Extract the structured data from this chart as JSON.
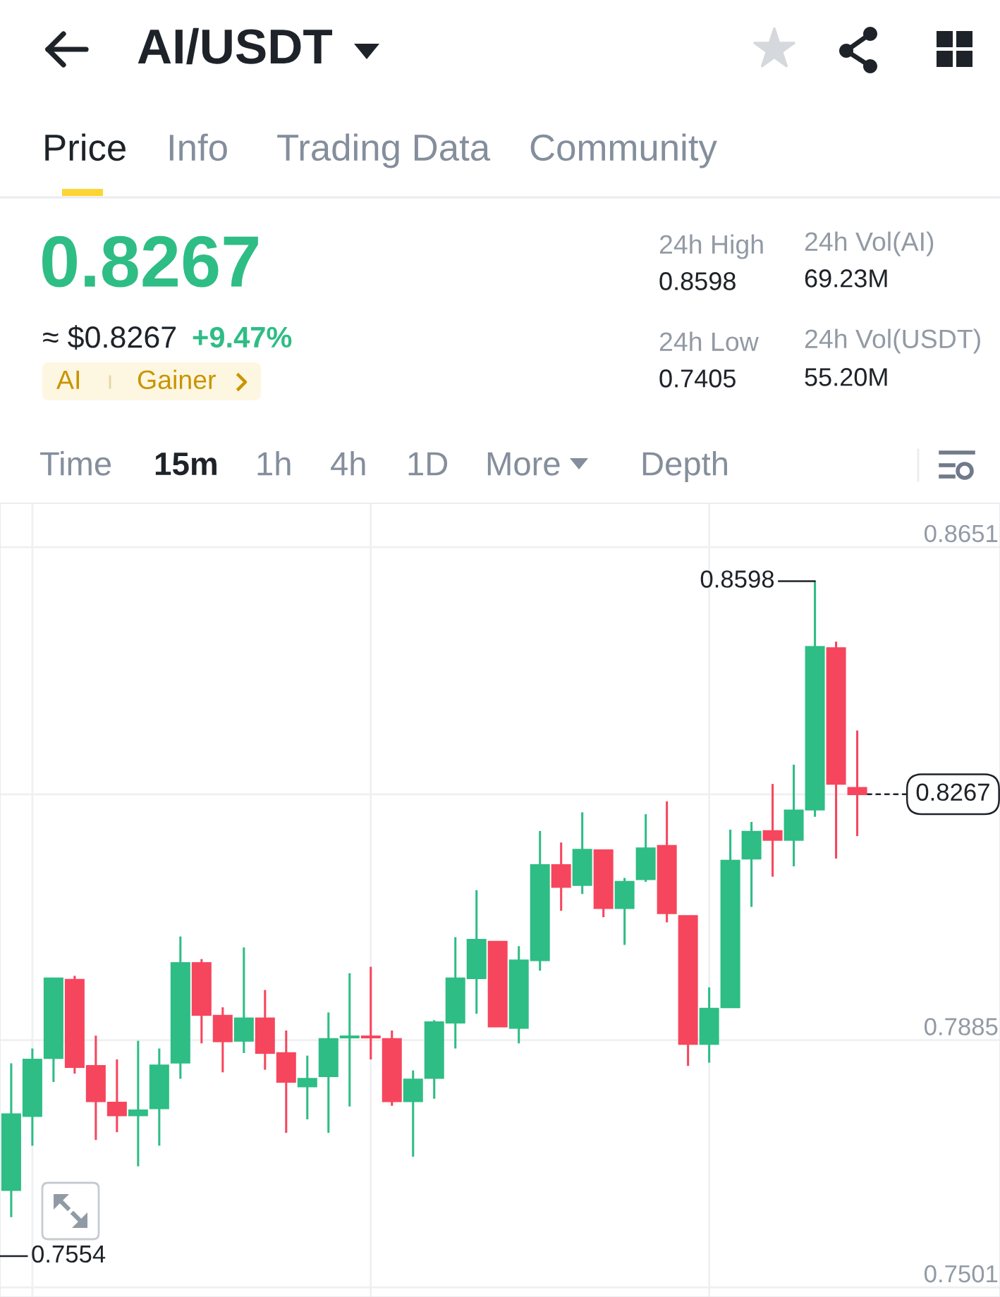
{
  "chart_data": {
    "type": "candlestick",
    "title": "AI/USDT",
    "categories": [
      null,
      null,
      null,
      null,
      null,
      null,
      null,
      null,
      null,
      null,
      null,
      null,
      null,
      null,
      null,
      null,
      null,
      null,
      null,
      null,
      null,
      null,
      null,
      null,
      null,
      null,
      null,
      null,
      null,
      null,
      null,
      null,
      null,
      null,
      null,
      null,
      null,
      null,
      null,
      null,
      null
    ],
    "ohlc": [
      [
        0.7652,
        0.7849,
        0.761,
        0.777
      ],
      [
        0.7767,
        0.7872,
        0.7721,
        0.7855
      ],
      [
        0.7857,
        0.7981,
        0.782,
        0.7981
      ],
      [
        0.7979,
        0.7985,
        0.7833,
        0.7843
      ],
      [
        0.7845,
        0.7892,
        0.773,
        0.779
      ],
      [
        0.7788,
        0.7855,
        0.7742,
        0.7768
      ],
      [
        0.7768,
        0.7884,
        0.7689,
        0.7776
      ],
      [
        0.7779,
        0.7872,
        0.7721,
        0.7846
      ],
      [
        0.785,
        0.8046,
        0.7825,
        0.8005
      ],
      [
        0.8005,
        0.8011,
        0.788,
        0.7924
      ],
      [
        0.7923,
        0.7936,
        0.7835,
        0.7883
      ],
      [
        0.7884,
        0.8029,
        0.7865,
        0.7919
      ],
      [
        0.7919,
        0.7963,
        0.7839,
        0.7865
      ],
      [
        0.7865,
        0.79,
        0.7741,
        0.782
      ],
      [
        0.7813,
        0.7861,
        0.7762,
        0.7825
      ],
      [
        0.7829,
        0.7928,
        0.7741,
        0.7887
      ],
      [
        0.7889,
        0.7989,
        0.7782,
        0.7891
      ],
      [
        0.7891,
        0.7999,
        0.7855,
        0.7889
      ],
      [
        0.7887,
        0.79,
        0.7783,
        0.779
      ],
      [
        0.779,
        0.7838,
        0.7704,
        0.7824
      ],
      [
        0.7826,
        0.7916,
        0.7794,
        0.7913
      ],
      [
        0.7912,
        0.8045,
        0.7872,
        0.7981
      ],
      [
        0.7981,
        0.8118,
        0.7926,
        0.8041
      ],
      [
        0.8038,
        0.8038,
        0.7906,
        0.7906
      ],
      [
        0.7904,
        0.8031,
        0.788,
        0.8009
      ],
      [
        0.8009,
        0.821,
        0.7993,
        0.8157
      ],
      [
        0.8157,
        0.8192,
        0.8086,
        0.8123
      ],
      [
        0.8126,
        0.8239,
        0.8112,
        0.8181
      ],
      [
        0.818,
        0.8181,
        0.8076,
        0.809
      ],
      [
        0.809,
        0.8137,
        0.8033,
        0.8131
      ],
      [
        0.8135,
        0.8236,
        0.8131,
        0.8183
      ],
      [
        0.8187,
        0.8256,
        0.8068,
        0.8082
      ],
      [
        0.8078,
        0.8078,
        0.7845,
        0.7879
      ],
      [
        0.7879,
        0.7967,
        0.785,
        0.7934
      ],
      [
        0.7936,
        0.8212,
        0.7935,
        0.8164
      ],
      [
        0.8167,
        0.8224,
        0.8092,
        0.8209
      ],
      [
        0.821,
        0.8283,
        0.8139,
        0.8196
      ],
      [
        0.8196,
        0.8313,
        0.8155,
        0.8242
      ],
      [
        0.8243,
        0.8598,
        0.8232,
        0.8496
      ],
      [
        0.8494,
        0.8504,
        0.8167,
        0.8283
      ],
      [
        0.8277,
        0.8366,
        0.8202,
        0.8267
      ]
    ],
    "colors": [
      "#2ebd85",
      "#2ebd85",
      "#2ebd85",
      "#f6465d",
      "#f6465d",
      "#f6465d",
      "#2ebd85",
      "#2ebd85",
      "#2ebd85",
      "#f6465d",
      "#f6465d",
      "#2ebd85",
      "#f6465d",
      "#f6465d",
      "#2ebd85",
      "#2ebd85",
      "#2ebd85",
      "#f6465d",
      "#f6465d",
      "#2ebd85",
      "#2ebd85",
      "#2ebd85",
      "#2ebd85",
      "#f6465d",
      "#2ebd85",
      "#2ebd85",
      "#f6465d",
      "#2ebd85",
      "#f6465d",
      "#2ebd85",
      "#2ebd85",
      "#f6465d",
      "#f6465d",
      "#2ebd85",
      "#2ebd85",
      "#2ebd85",
      "#f6465d",
      "#2ebd85",
      "#2ebd85",
      "#f6465d",
      "#f6465d"
    ],
    "ylim": [
      0.7486,
      0.8719
    ],
    "yticks": [
      0.8651,
      {
        "value": 0.8267,
        "label": null
      },
      0.7885,
      0.7501
    ],
    "grid": true,
    "tick_labels": "y",
    "ref_lines": [
      {
        "axis": "y",
        "value": 0.8267,
        "label": "0.8267",
        "line_style": "dashed",
        "color": "#1e2329"
      }
    ],
    "annotations": [
      "0.8598",
      "0.7554",
      "Price",
      "Info",
      "Trading Data",
      "Community",
      "0.8267",
      "≈ $0.8267",
      "+9.47%",
      "AI",
      "Gainer",
      "24h High",
      "0.8598",
      "24h Vol(AI)",
      "69.23M",
      "24h Low",
      "0.7405",
      "24h Vol(USDT)",
      "55.20M",
      "Time",
      "15m",
      "1h",
      "4h",
      "1D",
      "More",
      "Depth"
    ]
  }
}
